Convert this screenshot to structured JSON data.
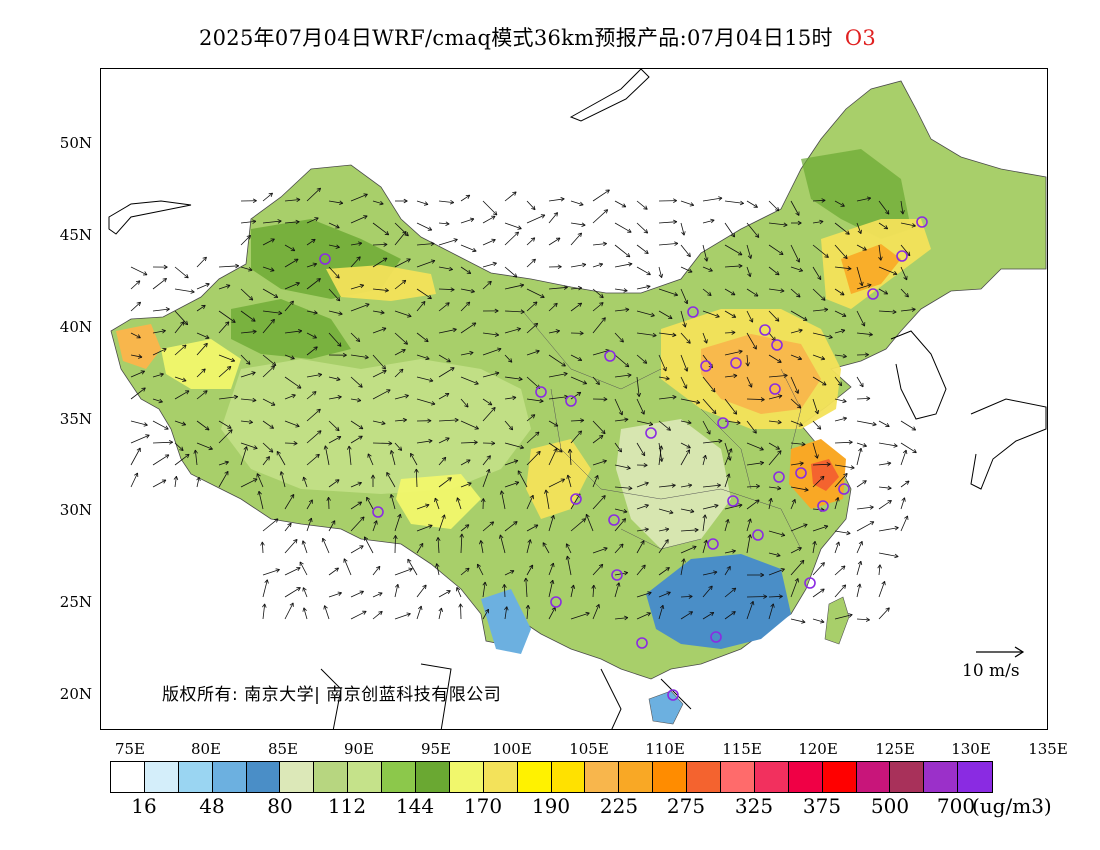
{
  "title": {
    "text": "2025年07月04日WRF/cmaq模式36km预报产品:07月04日15时",
    "species": "O3",
    "species_color": "#e02020"
  },
  "map": {
    "lat_labels": [
      "50N",
      "45N",
      "40N",
      "35N",
      "30N",
      "25N",
      "20N"
    ],
    "lon_labels": [
      "75E",
      "80E",
      "85E",
      "90E",
      "95E",
      "100E",
      "105E",
      "110E",
      "115E",
      "120E",
      "125E",
      "130E",
      "135E"
    ],
    "copyright": "版权所有: 南京大学| 南京创蓝科技有限公司",
    "wind_reference": "10 m/s",
    "station_marker_color": "#8a2be2",
    "ocean_highlight_color": "#4a90d9"
  },
  "colorbar": {
    "colors": [
      "#ffffff",
      "#d4eefa",
      "#9ad5f2",
      "#6cb0e0",
      "#4a8ec7",
      "#dce8b8",
      "#b7d680",
      "#c5e28a",
      "#8cc84b",
      "#6aa832",
      "#f1f76c",
      "#f3e25a",
      "#fff200",
      "#ffe100",
      "#f8b64c",
      "#f9a825",
      "#ff8c00",
      "#f4632f",
      "#ff6b6b",
      "#f2305e",
      "#f00045",
      "#ff0000",
      "#c8157a",
      "#a8315a",
      "#9b30c9",
      "#8a2be2"
    ],
    "labels": [
      "16",
      "48",
      "80",
      "112",
      "144",
      "170",
      "190",
      "225",
      "275",
      "325",
      "375",
      "500",
      "700"
    ],
    "unit": "(ug/m3)"
  }
}
